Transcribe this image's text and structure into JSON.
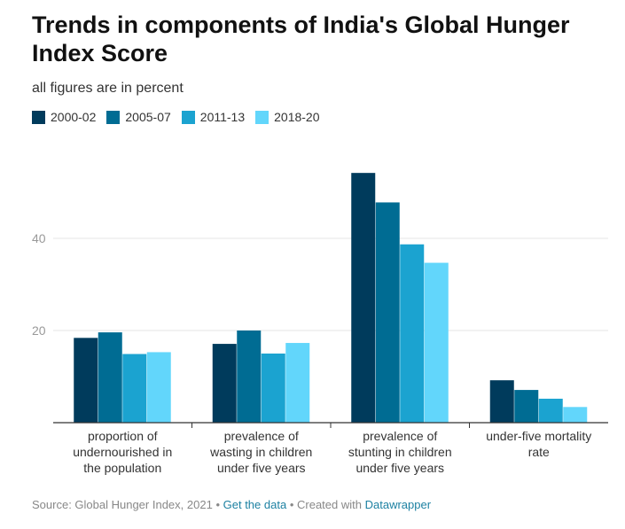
{
  "header": {
    "title": "Trends in components of India's Global Hunger Index Score",
    "subtitle": "all figures are in percent"
  },
  "footer": {
    "source_text": "Source: Global Hunger Index, 2021",
    "separator": "•",
    "data_link": "Get the data",
    "created_with": "Created with",
    "tool_link": "Datawrapper"
  },
  "colors": {
    "2000-02": "#003b5c",
    "2005-07": "#006c93",
    "2011-13": "#1ba3d0",
    "2018-20": "#62d6fb",
    "link": "#1d81a2"
  },
  "chart_data": {
    "type": "bar",
    "title": "Trends in components of India's Global Hunger Index Score",
    "subtitle": "all figures are in percent",
    "xlabel": "",
    "ylabel": "",
    "ylim": [
      0,
      60
    ],
    "yticks": [
      20,
      40
    ],
    "grid": true,
    "legend_position": "top-left",
    "categories": [
      "proportion of undernourished in the population",
      "prevalence of wasting in children under five years",
      "prevalence of stunting in children under five years",
      "under-five mortality rate"
    ],
    "category_lines": [
      [
        "proportion of",
        "undernourished in",
        "the population"
      ],
      [
        "prevalence of",
        "wasting in children",
        "under five years"
      ],
      [
        "prevalence of",
        "stunting in children",
        "under five years"
      ],
      [
        "under-five mortality",
        "rate"
      ]
    ],
    "series": [
      {
        "name": "2000-02",
        "values": [
          18.4,
          17.1,
          54.2,
          9.2
        ]
      },
      {
        "name": "2005-07",
        "values": [
          19.6,
          20.0,
          47.8,
          7.1
        ]
      },
      {
        "name": "2011-13",
        "values": [
          14.9,
          15.0,
          38.7,
          5.2
        ]
      },
      {
        "name": "2018-20",
        "values": [
          15.3,
          17.3,
          34.7,
          3.4
        ]
      }
    ]
  }
}
